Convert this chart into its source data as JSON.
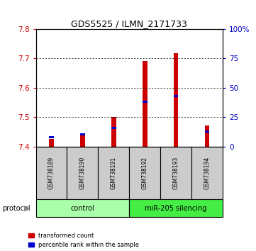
{
  "title": "GDS5525 / ILMN_2171733",
  "samples": [
    "GSM738189",
    "GSM738190",
    "GSM738191",
    "GSM738192",
    "GSM738193",
    "GSM738194"
  ],
  "red_values": [
    7.427,
    7.445,
    7.501,
    7.692,
    7.718,
    7.472
  ],
  "blue_values": [
    7.432,
    7.443,
    7.463,
    7.553,
    7.572,
    7.451
  ],
  "baseline": 7.4,
  "ylim": [
    7.4,
    7.8
  ],
  "right_ylim": [
    0,
    100
  ],
  "right_yticks": [
    0,
    25,
    50,
    75,
    100
  ],
  "right_yticklabels": [
    "0",
    "25",
    "50",
    "75",
    "100%"
  ],
  "left_yticks": [
    7.4,
    7.5,
    7.6,
    7.7,
    7.8
  ],
  "control_label": "control",
  "treatment_label": "miR-205 silencing",
  "control_color": "#aaffaa",
  "treatment_color": "#44ee44",
  "bar_bg_color": "#cccccc",
  "red_color": "#cc0000",
  "blue_color": "#0000cc",
  "protocol_label": "protocol",
  "legend_red": "transformed count",
  "legend_blue": "percentile rank within the sample",
  "bar_width": 0.15,
  "fig_bg": "#ffffff"
}
